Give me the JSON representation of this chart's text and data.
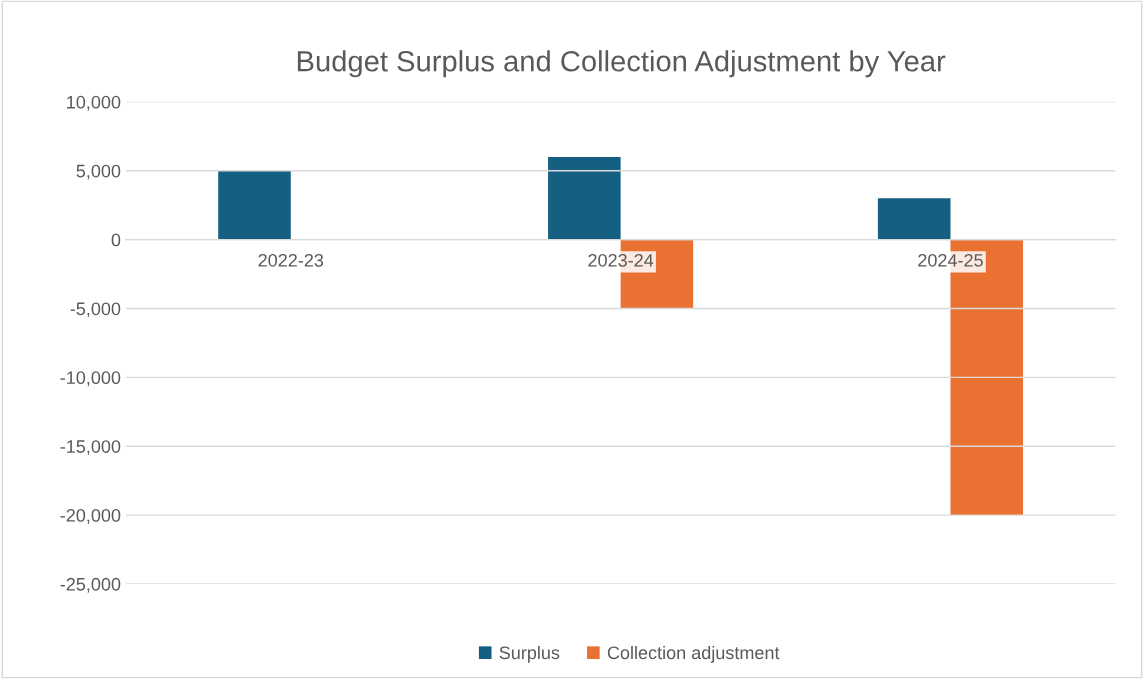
{
  "chart_data": {
    "type": "bar",
    "title": "Budget Surplus and Collection Adjustment by Year",
    "categories": [
      "2022-23",
      "2023-24",
      "2024-25"
    ],
    "series": [
      {
        "name": "Surplus",
        "color": "#156082",
        "values": [
          5000,
          6000,
          3000
        ]
      },
      {
        "name": "Collection adjustment",
        "color": "#e97132",
        "values": [
          null,
          -5000,
          -20000
        ]
      }
    ],
    "ylim": [
      -25000,
      10000
    ],
    "yticks": [
      {
        "value": -25000,
        "label": "-25,000"
      },
      {
        "value": -20000,
        "label": "-20,000"
      },
      {
        "value": -15000,
        "label": "-15,000"
      },
      {
        "value": -10000,
        "label": "-10,000"
      },
      {
        "value": -5000,
        "label": "-5,000"
      },
      0,
      {
        "value": 5000,
        "label": "5,000"
      },
      {
        "value": 10000,
        "label": "10,000"
      }
    ],
    "grid": "y",
    "legend": "bottom"
  }
}
